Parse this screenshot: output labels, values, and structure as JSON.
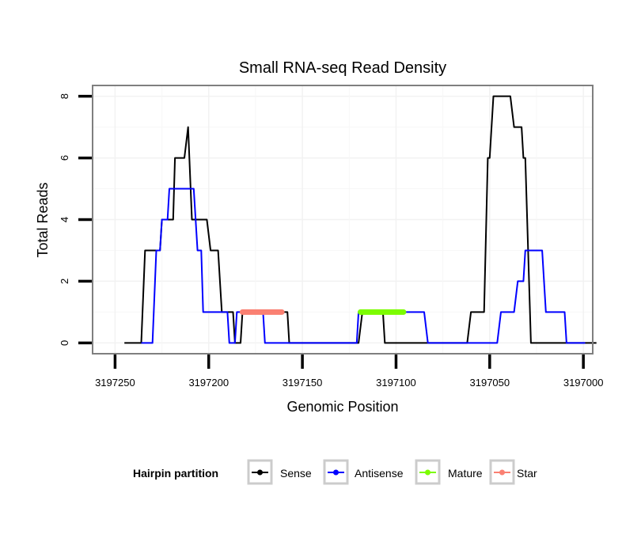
{
  "chart_data": {
    "type": "line",
    "title": "Small RNA-seq Read Density",
    "xlabel": "Genomic Position",
    "ylabel": "Total Reads",
    "xlim": [
      3197262,
      3196995
    ],
    "x_reversed": true,
    "ylim": [
      -0.35,
      8.35
    ],
    "grid": true,
    "x_ticks": [
      3197250,
      3197200,
      3197150,
      3197100,
      3197050,
      3197000
    ],
    "x_tick_labels": [
      "3197250",
      "3197200",
      "3197150",
      "3197100",
      "3197050",
      "3197000"
    ],
    "y_ticks": [
      0,
      2,
      4,
      6,
      8
    ],
    "y_tick_labels": [
      "0",
      "2",
      "4",
      "6",
      "8"
    ],
    "legend": {
      "title": "Hairpin partition",
      "position": "bottom",
      "entries": [
        "Sense",
        "Antisense",
        "Mature",
        "Star"
      ]
    },
    "series": [
      {
        "name": "Sense",
        "color": "#000000",
        "points": [
          [
            3197245,
            0
          ],
          [
            3197236,
            0
          ],
          [
            3197234,
            3
          ],
          [
            3197226,
            3
          ],
          [
            3197225,
            4
          ],
          [
            3197219,
            4
          ],
          [
            3197218,
            6
          ],
          [
            3197213,
            6
          ],
          [
            3197211,
            7
          ],
          [
            3197209,
            4
          ],
          [
            3197201,
            4
          ],
          [
            3197199,
            3
          ],
          [
            3197195,
            3
          ],
          [
            3197193,
            1
          ],
          [
            3197187,
            1
          ],
          [
            3197186,
            0
          ],
          [
            3197183,
            0
          ],
          [
            3197182,
            1
          ],
          [
            3197158,
            1
          ],
          [
            3197157,
            0
          ],
          [
            3197120,
            0
          ],
          [
            3197118,
            1
          ],
          [
            3197107,
            1
          ],
          [
            3197106,
            0
          ],
          [
            3197062,
            0
          ],
          [
            3197060,
            1
          ],
          [
            3197053,
            1
          ],
          [
            3197051,
            6
          ],
          [
            3197050,
            6
          ],
          [
            3197048,
            8
          ],
          [
            3197039,
            8
          ],
          [
            3197037,
            7
          ],
          [
            3197033,
            7
          ],
          [
            3197032,
            6
          ],
          [
            3197031,
            6
          ],
          [
            3197028,
            0
          ],
          [
            3196993,
            0
          ]
        ]
      },
      {
        "name": "Antisense",
        "color": "#0000ff",
        "points": [
          [
            3197236,
            0
          ],
          [
            3197230,
            0
          ],
          [
            3197228,
            3
          ],
          [
            3197226,
            3
          ],
          [
            3197225,
            4
          ],
          [
            3197222,
            4
          ],
          [
            3197221,
            5
          ],
          [
            3197208,
            5
          ],
          [
            3197206,
            3
          ],
          [
            3197204,
            3
          ],
          [
            3197203,
            1
          ],
          [
            3197190,
            1
          ],
          [
            3197189,
            0
          ],
          [
            3197186,
            0
          ],
          [
            3197185,
            1
          ],
          [
            3197171,
            1
          ],
          [
            3197170,
            0
          ],
          [
            3197121,
            0
          ],
          [
            3197120,
            1
          ],
          [
            3197085,
            1
          ],
          [
            3197083,
            0
          ],
          [
            3197046,
            0
          ],
          [
            3197044,
            1
          ],
          [
            3197037,
            1
          ],
          [
            3197035,
            2
          ],
          [
            3197032,
            2
          ],
          [
            3197031,
            3
          ],
          [
            3197022,
            3
          ],
          [
            3197020,
            1
          ],
          [
            3197010,
            1
          ],
          [
            3197009,
            0
          ],
          [
            3196999,
            0
          ]
        ]
      },
      {
        "name": "Mature",
        "color": "#7cfc00",
        "points": [
          [
            3197119,
            1
          ],
          [
            3197096,
            1
          ]
        ]
      },
      {
        "name": "Star",
        "color": "#fa8072",
        "points": [
          [
            3197182,
            1
          ],
          [
            3197161,
            1
          ]
        ]
      }
    ]
  }
}
